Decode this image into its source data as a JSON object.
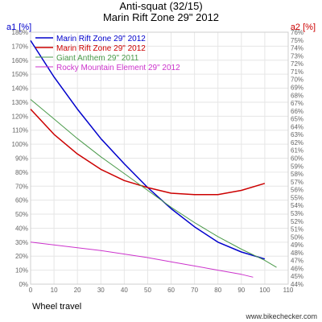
{
  "chart_data": {
    "type": "line",
    "title": "Anti-squat (32/15)",
    "subtitle": "Marin Rift Zone 29\" 2012",
    "ylabel_left": "a1 [%]",
    "ylabel_right": "a2 [%]",
    "xlabel": "Wheel travel",
    "xlim": [
      0,
      110
    ],
    "ylim_left": [
      0,
      180
    ],
    "ylim_right": [
      44,
      76
    ],
    "x_ticks": [
      0,
      10,
      20,
      30,
      40,
      50,
      60,
      70,
      80,
      90,
      100,
      110
    ],
    "y_left_ticks": [
      0,
      10,
      20,
      30,
      40,
      50,
      60,
      70,
      80,
      90,
      100,
      110,
      120,
      130,
      140,
      150,
      160,
      170,
      180
    ],
    "y_right_ticks": [
      44,
      45,
      46,
      47,
      48,
      49,
      50,
      51,
      52,
      53,
      54,
      55,
      56,
      57,
      58,
      59,
      60,
      61,
      62,
      63,
      64,
      65,
      66,
      67,
      68,
      69,
      70,
      71,
      72,
      73,
      74,
      75,
      76
    ],
    "legend_position": "top-left",
    "grid": true,
    "series": [
      {
        "name": "Marin Rift Zone 29\" 2012",
        "color": "#0000cc",
        "axis": "left",
        "x": [
          0,
          10,
          20,
          30,
          40,
          50,
          60,
          70,
          80,
          90,
          100
        ],
        "y": [
          174,
          148,
          125,
          104,
          86,
          69,
          54,
          41,
          30,
          23,
          18
        ]
      },
      {
        "name": "Marin Rift Zone 29\" 2012",
        "color": "#cc0000",
        "axis": "left",
        "x": [
          0,
          10,
          20,
          30,
          40,
          50,
          60,
          70,
          80,
          90,
          100
        ],
        "y": [
          125,
          107,
          93,
          82,
          74,
          69,
          65,
          64,
          64,
          67,
          72
        ]
      },
      {
        "name": "Giant Anthem 29\" 2011",
        "color": "#4a9a4a",
        "axis": "left",
        "x": [
          0,
          10,
          20,
          30,
          40,
          50,
          60,
          70,
          80,
          90,
          100,
          105
        ],
        "y": [
          132,
          118,
          104,
          91,
          79,
          67,
          55,
          44,
          34,
          25,
          17,
          12
        ]
      },
      {
        "name": "Rocky Mountain Element 29\" 2012",
        "color": "#cc33cc",
        "axis": "left",
        "x": [
          0,
          10,
          20,
          30,
          40,
          50,
          60,
          70,
          80,
          90,
          95
        ],
        "y": [
          30,
          28,
          26,
          24,
          21.5,
          19,
          16,
          13,
          10,
          7,
          5
        ]
      }
    ]
  },
  "watermark": "www.bikechecker.com"
}
